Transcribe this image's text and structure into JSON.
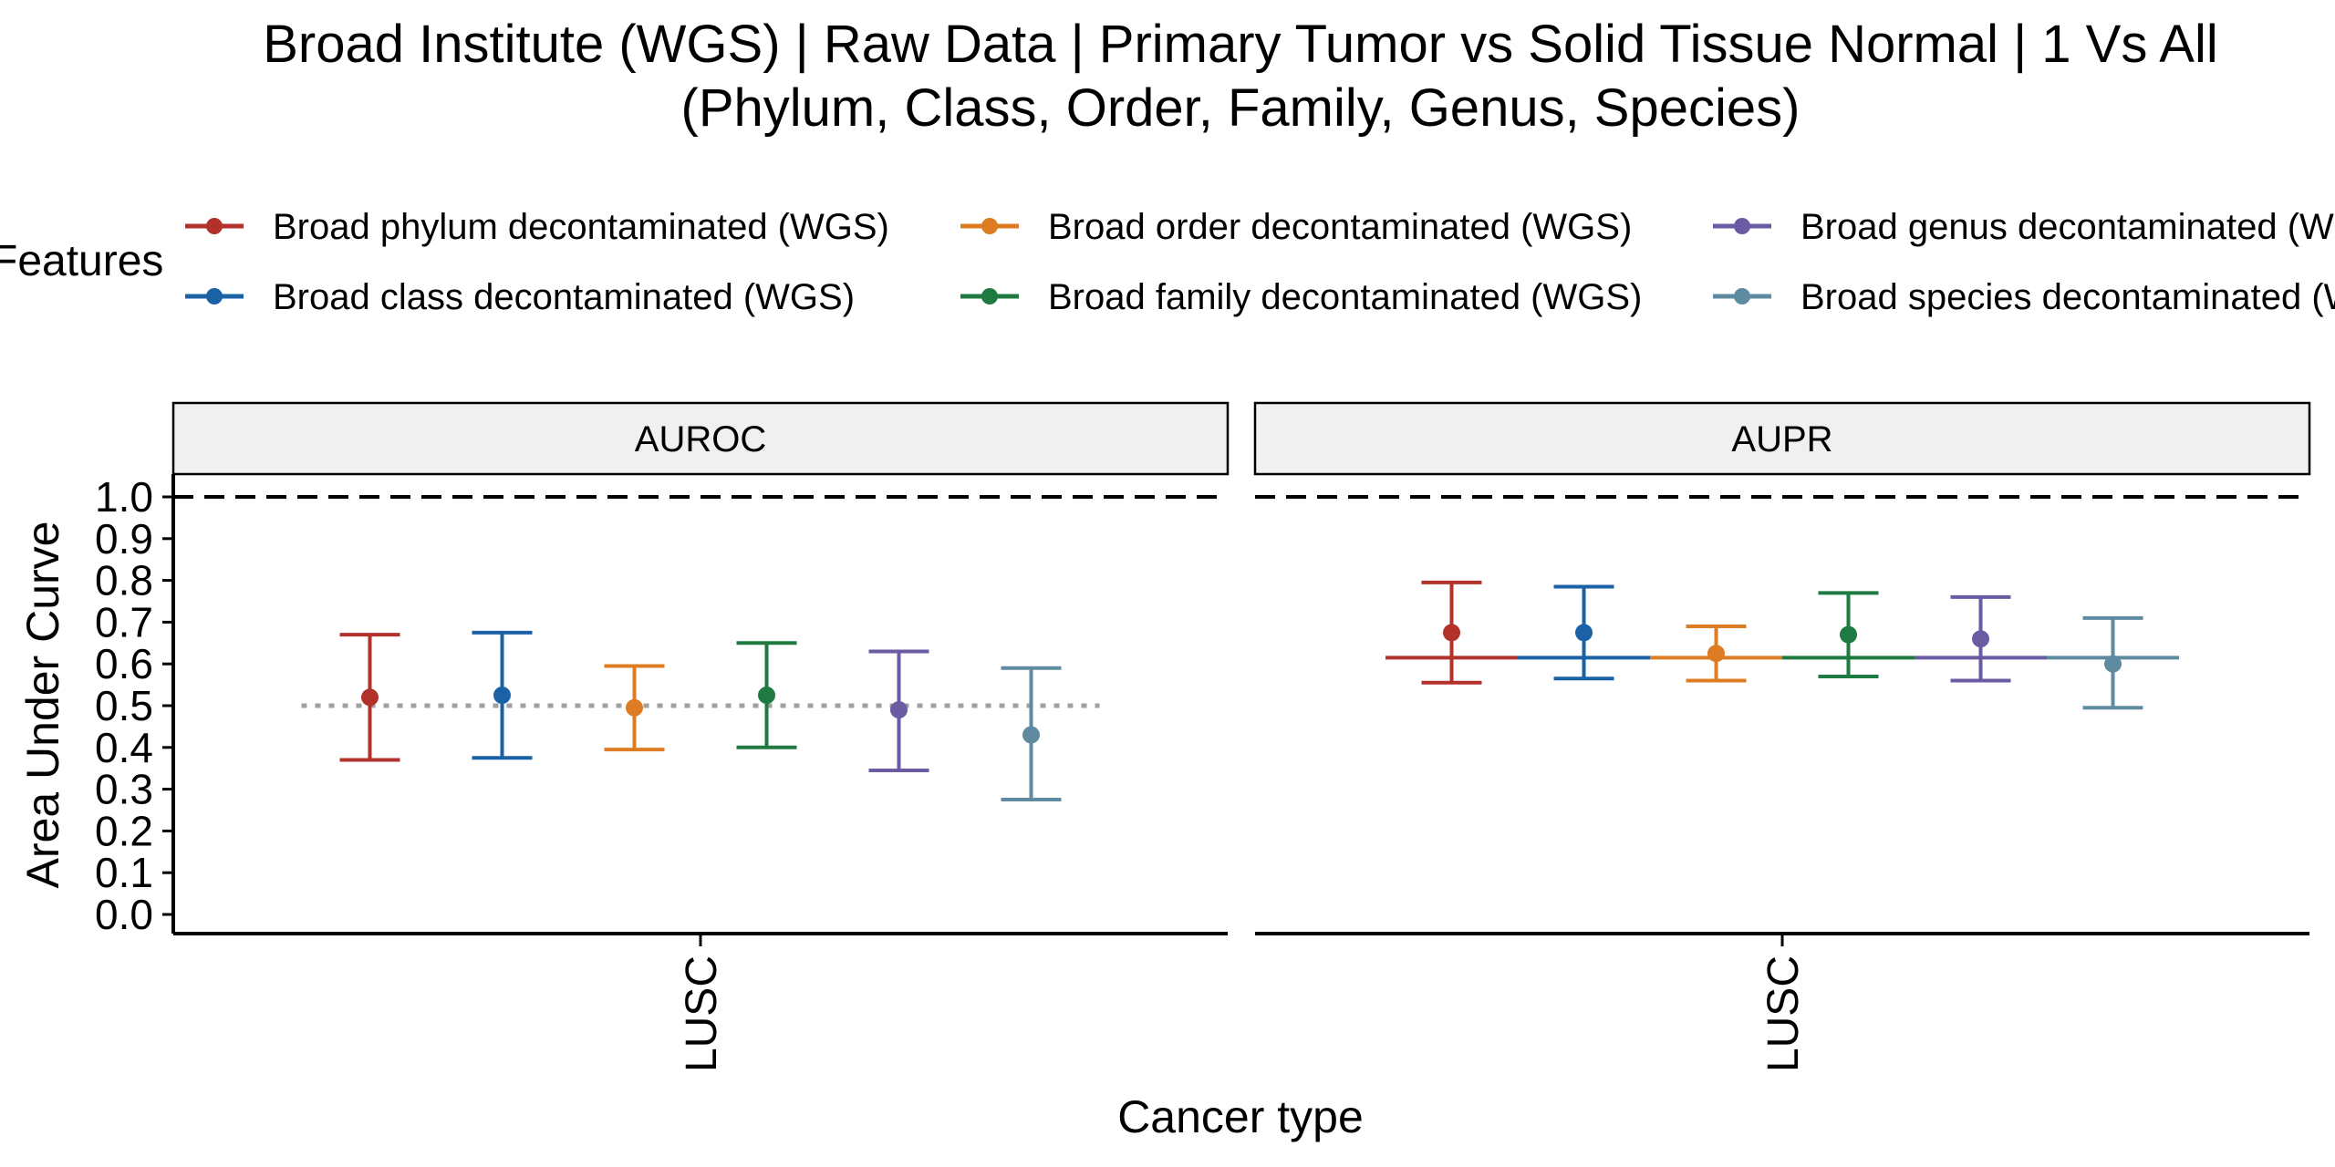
{
  "chart_data": {
    "type": "scatter",
    "title_line1": "Broad Institute (WGS) | Raw Data | Primary Tumor vs Solid Tissue Normal | 1 Vs All",
    "title_line2": "(Phylum, Class, Order, Family, Genus, Species)",
    "xlabel": "Cancer type",
    "ylabel": "Area Under Curve",
    "ylim": [
      0,
      1
    ],
    "y_ticks": [
      "0.0",
      "0.1",
      "0.2",
      "0.3",
      "0.4",
      "0.5",
      "0.6",
      "0.7",
      "0.8",
      "0.9",
      "1.0"
    ],
    "reference_line": 1.0,
    "legend": {
      "title": "Features",
      "placement": "top",
      "entries": [
        {
          "label": "Broad phylum decontaminated (WGS)",
          "color": "#b2312b"
        },
        {
          "label": "Broad class decontaminated (WGS)",
          "color": "#1a62a5"
        },
        {
          "label": "Broad order decontaminated (WGS)",
          "color": "#de7c23"
        },
        {
          "label": "Broad family decontaminated (WGS)",
          "color": "#1f7a42"
        },
        {
          "label": "Broad genus decontaminated (WGS)",
          "color": "#6a5ba3"
        },
        {
          "label": "Broad species decontaminated (WGS)",
          "color": "#5f8ba1"
        }
      ]
    },
    "panels": [
      {
        "strip": "AUROC",
        "category": "LUSC",
        "null_line": 0.5,
        "points": [
          {
            "value": 0.52,
            "lower": 0.37,
            "upper": 0.67
          },
          {
            "value": 0.525,
            "lower": 0.375,
            "upper": 0.675
          },
          {
            "value": 0.495,
            "lower": 0.395,
            "upper": 0.595
          },
          {
            "value": 0.525,
            "lower": 0.4,
            "upper": 0.65
          },
          {
            "value": 0.49,
            "lower": 0.345,
            "upper": 0.63
          },
          {
            "value": 0.43,
            "lower": 0.275,
            "upper": 0.59
          }
        ]
      },
      {
        "strip": "AUPR",
        "category": "LUSC",
        "null_line": 0.615,
        "points": [
          {
            "value": 0.675,
            "lower": 0.555,
            "upper": 0.795
          },
          {
            "value": 0.675,
            "lower": 0.565,
            "upper": 0.785
          },
          {
            "value": 0.625,
            "lower": 0.56,
            "upper": 0.69
          },
          {
            "value": 0.67,
            "lower": 0.57,
            "upper": 0.77
          },
          {
            "value": 0.66,
            "lower": 0.56,
            "upper": 0.76
          },
          {
            "value": 0.6,
            "lower": 0.495,
            "upper": 0.71
          }
        ]
      }
    ]
  }
}
